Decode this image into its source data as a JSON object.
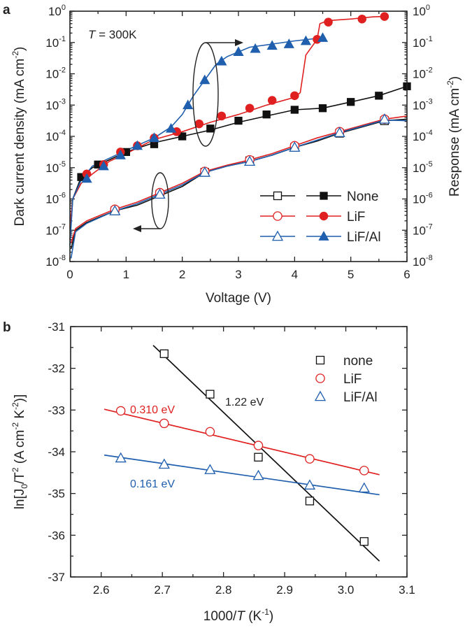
{
  "chart_data": [
    {
      "panel_label": "a",
      "type": "line",
      "title": "",
      "annotation": {
        "var": "T",
        "text": " = 300K"
      },
      "xlabel": "Voltage (V)",
      "ylabel_left": {
        "text": "Dark current density (mA cm",
        "sup": "-2",
        "close": ")"
      },
      "ylabel_right": {
        "text": "Response (mA cm",
        "sup": "-2",
        "close": ")"
      },
      "xlim": [
        0,
        6
      ],
      "ylim_log10": [
        -8,
        0
      ],
      "xticks": [
        "0",
        "1",
        "2",
        "3",
        "4",
        "5",
        "6"
      ],
      "yticks": [
        {
          "base": "10",
          "exp": "0",
          "v": 0
        },
        {
          "base": "10",
          "exp": "-1",
          "v": -1
        },
        {
          "base": "10",
          "exp": "-2",
          "v": -2
        },
        {
          "base": "10",
          "exp": "-3",
          "v": -3
        },
        {
          "base": "10",
          "exp": "-4",
          "v": -4
        },
        {
          "base": "10",
          "exp": "-5",
          "v": -5
        },
        {
          "base": "10",
          "exp": "-6",
          "v": -6
        },
        {
          "base": "10",
          "exp": "-7",
          "v": -7
        },
        {
          "base": "10",
          "exp": "-8",
          "v": -8
        }
      ],
      "legend": [
        {
          "label": "None",
          "color": "#111111"
        },
        {
          "label": "LiF",
          "color": "#e02020"
        },
        {
          "label": "LiF/Al",
          "color": "#1f5fad"
        }
      ],
      "series": [
        {
          "name": "None",
          "kind": "dark",
          "marker": "square",
          "filled": false,
          "color": "#111111",
          "line": [
            [
              0.02,
              -7.6
            ],
            [
              0.1,
              -7.0
            ],
            [
              0.3,
              -6.75
            ],
            [
              0.5,
              -6.6
            ],
            [
              0.8,
              -6.38
            ],
            [
              1.2,
              -6.2
            ],
            [
              1.6,
              -5.9
            ],
            [
              2.0,
              -5.6
            ],
            [
              2.4,
              -5.15
            ],
            [
              2.8,
              -4.95
            ],
            [
              3.2,
              -4.8
            ],
            [
              3.6,
              -4.6
            ],
            [
              4.0,
              -4.35
            ],
            [
              4.4,
              -4.15
            ],
            [
              4.8,
              -3.9
            ],
            [
              5.2,
              -3.7
            ],
            [
              5.6,
              -3.5
            ],
            [
              6.0,
              -3.45
            ]
          ],
          "points": [
            [
              0.8,
              -6.38
            ],
            [
              1.6,
              -5.85
            ],
            [
              2.4,
              -5.15
            ],
            [
              3.2,
              -4.78
            ],
            [
              4.0,
              -4.35
            ],
            [
              4.8,
              -3.9
            ],
            [
              5.6,
              -3.5
            ]
          ]
        },
        {
          "name": "LiF",
          "kind": "dark",
          "marker": "circle",
          "filled": false,
          "color": "#e02020",
          "line": [
            [
              0.02,
              -7.4
            ],
            [
              0.1,
              -6.95
            ],
            [
              0.3,
              -6.7
            ],
            [
              0.5,
              -6.55
            ],
            [
              0.8,
              -6.33
            ],
            [
              1.2,
              -6.1
            ],
            [
              1.6,
              -5.8
            ],
            [
              2.0,
              -5.5
            ],
            [
              2.4,
              -5.12
            ],
            [
              2.8,
              -4.92
            ],
            [
              3.2,
              -4.75
            ],
            [
              3.6,
              -4.55
            ],
            [
              4.0,
              -4.3
            ],
            [
              4.4,
              -4.05
            ],
            [
              4.8,
              -3.85
            ],
            [
              5.2,
              -3.65
            ],
            [
              5.6,
              -3.45
            ],
            [
              6.0,
              -3.35
            ]
          ],
          "points": [
            [
              0.8,
              -6.33
            ],
            [
              1.6,
              -5.8
            ],
            [
              2.4,
              -5.12
            ],
            [
              3.2,
              -4.75
            ],
            [
              4.0,
              -4.3
            ],
            [
              4.8,
              -3.85
            ],
            [
              5.6,
              -3.45
            ]
          ]
        },
        {
          "name": "LiF/Al",
          "kind": "dark",
          "marker": "triangle",
          "filled": false,
          "color": "#1f5fad",
          "line": [
            [
              0.02,
              -7.9
            ],
            [
              0.1,
              -7.05
            ],
            [
              0.3,
              -6.78
            ],
            [
              0.5,
              -6.62
            ],
            [
              0.8,
              -6.38
            ],
            [
              1.2,
              -6.15
            ],
            [
              1.6,
              -5.85
            ],
            [
              2.0,
              -5.55
            ],
            [
              2.4,
              -5.15
            ],
            [
              2.8,
              -4.95
            ],
            [
              3.2,
              -4.8
            ],
            [
              3.6,
              -4.6
            ],
            [
              4.0,
              -4.35
            ],
            [
              4.4,
              -4.12
            ],
            [
              4.8,
              -3.88
            ],
            [
              5.2,
              -3.68
            ],
            [
              5.6,
              -3.48
            ],
            [
              6.0,
              -3.5
            ]
          ],
          "points": [
            [
              0.8,
              -6.38
            ],
            [
              1.6,
              -5.85
            ],
            [
              2.4,
              -5.15
            ],
            [
              3.2,
              -4.8
            ],
            [
              4.0,
              -4.35
            ],
            [
              4.8,
              -3.88
            ],
            [
              5.6,
              -3.45
            ]
          ]
        },
        {
          "name": "None",
          "kind": "response",
          "marker": "square",
          "filled": true,
          "color": "#111111",
          "line": [
            [
              0.0,
              -7.3
            ],
            [
              0.05,
              -6.0
            ],
            [
              0.2,
              -5.3
            ],
            [
              0.4,
              -5.0
            ],
            [
              0.7,
              -4.75
            ],
            [
              1.0,
              -4.5
            ],
            [
              1.5,
              -4.2
            ],
            [
              2.0,
              -4.0
            ],
            [
              2.5,
              -3.8
            ],
            [
              3.0,
              -3.55
            ],
            [
              3.5,
              -3.35
            ],
            [
              4.0,
              -3.15
            ],
            [
              4.5,
              -3.1
            ],
            [
              5.0,
              -2.9
            ],
            [
              5.5,
              -2.7
            ],
            [
              6.0,
              -2.4
            ]
          ],
          "points": [
            [
              0.2,
              -5.3
            ],
            [
              0.5,
              -4.9
            ],
            [
              1.0,
              -4.5
            ],
            [
              1.5,
              -4.25
            ],
            [
              2.0,
              -4.0
            ],
            [
              2.5,
              -3.75
            ],
            [
              3.0,
              -3.5
            ],
            [
              3.5,
              -3.3
            ],
            [
              4.0,
              -3.15
            ],
            [
              4.5,
              -3.1
            ],
            [
              5.0,
              -2.9
            ],
            [
              5.5,
              -2.7
            ],
            [
              6.0,
              -2.4
            ]
          ]
        },
        {
          "name": "LiF",
          "kind": "response",
          "marker": "circle",
          "filled": true,
          "color": "#e02020",
          "line": [
            [
              0.0,
              -6.9
            ],
            [
              0.05,
              -6.0
            ],
            [
              0.2,
              -5.5
            ],
            [
              0.4,
              -5.2
            ],
            [
              0.7,
              -4.8
            ],
            [
              1.0,
              -4.55
            ],
            [
              1.5,
              -4.1
            ],
            [
              2.0,
              -3.85
            ],
            [
              2.5,
              -3.55
            ],
            [
              3.0,
              -3.3
            ],
            [
              3.5,
              -3.0
            ],
            [
              4.0,
              -2.75
            ],
            [
              4.1,
              -2.6
            ],
            [
              4.2,
              -1.4
            ],
            [
              4.4,
              -0.9
            ],
            [
              4.45,
              -0.4
            ],
            [
              4.6,
              -0.3
            ],
            [
              5.0,
              -0.25
            ],
            [
              5.4,
              -0.18
            ],
            [
              5.6,
              -0.17
            ]
          ],
          "points": [
            [
              0.3,
              -5.2
            ],
            [
              0.6,
              -4.9
            ],
            [
              0.9,
              -4.5
            ],
            [
              1.2,
              -4.3
            ],
            [
              1.5,
              -4.05
            ],
            [
              1.9,
              -3.85
            ],
            [
              2.3,
              -3.6
            ],
            [
              2.7,
              -3.35
            ],
            [
              3.2,
              -3.1
            ],
            [
              3.6,
              -2.85
            ],
            [
              4.0,
              -2.7
            ],
            [
              4.4,
              -0.9
            ],
            [
              4.6,
              -0.35
            ],
            [
              5.2,
              -0.25
            ],
            [
              5.6,
              -0.17
            ]
          ]
        },
        {
          "name": "LiF/Al",
          "kind": "response",
          "marker": "triangle",
          "filled": true,
          "color": "#1f5fad",
          "line": [
            [
              0.0,
              -7.5
            ],
            [
              0.05,
              -6.0
            ],
            [
              0.2,
              -5.4
            ],
            [
              0.4,
              -4.95
            ],
            [
              0.7,
              -4.7
            ],
            [
              1.0,
              -4.45
            ],
            [
              1.5,
              -4.05
            ],
            [
              1.8,
              -3.7
            ],
            [
              2.0,
              -3.3
            ],
            [
              2.2,
              -2.7
            ],
            [
              2.4,
              -2.2
            ],
            [
              2.6,
              -1.7
            ],
            [
              2.8,
              -1.45
            ],
            [
              3.0,
              -1.3
            ],
            [
              3.2,
              -1.15
            ],
            [
              3.6,
              -1.05
            ],
            [
              4.0,
              -0.95
            ],
            [
              4.5,
              -0.85
            ]
          ],
          "points": [
            [
              0.3,
              -5.35
            ],
            [
              0.6,
              -4.95
            ],
            [
              0.9,
              -4.6
            ],
            [
              1.2,
              -4.3
            ],
            [
              1.5,
              -4.05
            ],
            [
              1.8,
              -3.75
            ],
            [
              2.1,
              -3.0
            ],
            [
              2.4,
              -2.2
            ],
            [
              2.7,
              -1.6
            ],
            [
              3.0,
              -1.3
            ],
            [
              3.3,
              -1.2
            ],
            [
              3.6,
              -1.1
            ],
            [
              3.9,
              -1.05
            ],
            [
              4.2,
              -0.95
            ],
            [
              4.5,
              -0.85
            ]
          ]
        }
      ]
    },
    {
      "panel_label": "b",
      "type": "scatter",
      "title": "",
      "xlabel": {
        "pre": "1000/",
        "var": "T",
        "mid": " (K",
        "sup": "-1",
        "post": ")"
      },
      "ylabel": {
        "text": "ln[J",
        "sub": "0",
        "t": "/T",
        "sup": "2",
        "rest": " (A cm",
        "sup2": "-2",
        "k": " K",
        "sup3": "-2",
        "close": ")]"
      },
      "xlim": [
        2.55,
        3.1
      ],
      "ylim": [
        -37,
        -31
      ],
      "xticks": [
        "2.6",
        "2.7",
        "2.8",
        "2.9",
        "3.0",
        "3.1"
      ],
      "yticks": [
        "-31",
        "-32",
        "-33",
        "-34",
        "-35",
        "-36",
        "-37"
      ],
      "legend": [
        {
          "label": "none",
          "color": "#111111"
        },
        {
          "label": "LiF",
          "color": "#e02020"
        },
        {
          "label": "LiF/Al",
          "color": "#1f5fad"
        }
      ],
      "series": [
        {
          "name": "none",
          "marker": "square",
          "color": "#111111",
          "x": [
            2.703,
            2.778,
            2.857,
            2.941,
            3.03
          ],
          "y": [
            -31.65,
            -32.62,
            -34.13,
            -35.18,
            -36.15
          ],
          "fit": {
            "x": [
              2.685,
              3.055
            ],
            "y": [
              -31.45,
              -36.62
            ]
          },
          "activation_label": "1.22 eV"
        },
        {
          "name": "LiF",
          "marker": "circle",
          "color": "#e02020",
          "x": [
            2.632,
            2.703,
            2.778,
            2.857,
            2.941,
            3.03
          ],
          "y": [
            -33.02,
            -33.32,
            -33.52,
            -33.85,
            -34.17,
            -34.45
          ],
          "fit": {
            "x": [
              2.605,
              3.055
            ],
            "y": [
              -32.98,
              -34.55
            ]
          },
          "activation_label": "0.310 eV"
        },
        {
          "name": "LiF/Al",
          "marker": "triangle",
          "color": "#1f5fad",
          "x": [
            2.632,
            2.703,
            2.778,
            2.857,
            2.941,
            3.03
          ],
          "y": [
            -34.15,
            -34.3,
            -34.43,
            -34.57,
            -34.8,
            -34.87
          ],
          "fit": {
            "x": [
              2.605,
              3.055
            ],
            "y": [
              -34.08,
              -35.03
            ]
          },
          "activation_label": "0.161 eV"
        }
      ]
    }
  ]
}
